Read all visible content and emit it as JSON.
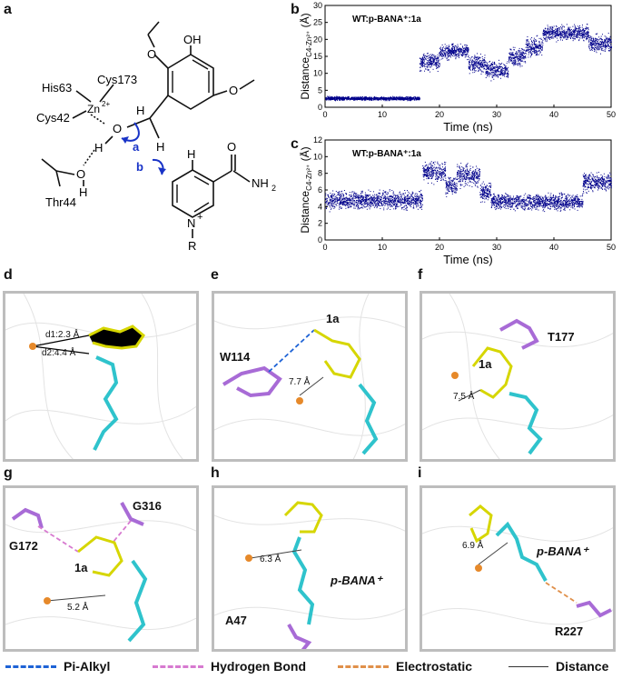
{
  "panel_labels": {
    "a": "a",
    "b": "b",
    "c": "c",
    "d": "d",
    "e": "e",
    "f": "f",
    "g": "g",
    "h": "h",
    "i": "i"
  },
  "scheme": {
    "zn": "Zn",
    "zn_charge": "2+",
    "his": "His63",
    "cys173": "Cys173",
    "cys42": "Cys42",
    "thr": "Thr44",
    "o": "O",
    "oh": "OH",
    "h": "H",
    "n": "N",
    "plus": "+",
    "r": "R",
    "nh2": "NH",
    "nh2_sub": "2",
    "arrow_a": "a",
    "arrow_b": "b"
  },
  "chart_data": [
    {
      "type": "scatter",
      "annotation": "WT:p-BANA⁺:1a",
      "xlabel": "Time (ns)",
      "ylabel": "Distance",
      "ylabel_sub": "C4-Zn²⁺",
      "ylabel_unit": " (Å)",
      "xlim": [
        0,
        50
      ],
      "ylim": [
        0,
        30
      ],
      "xticks": [
        0,
        10,
        20,
        30,
        40,
        50
      ],
      "yticks": [
        0,
        5,
        10,
        15,
        20,
        25,
        30
      ],
      "color": "#00008b",
      "segments": [
        {
          "x": [
            0,
            16.5
          ],
          "mean": 2.7,
          "spread": 0.6
        },
        {
          "x": [
            16.5,
            20
          ],
          "mean": 13.5,
          "spread": 3
        },
        {
          "x": [
            20,
            25
          ],
          "mean": 16.5,
          "spread": 2.5
        },
        {
          "x": [
            25,
            28
          ],
          "mean": 13,
          "spread": 3
        },
        {
          "x": [
            28,
            32
          ],
          "mean": 11,
          "spread": 3
        },
        {
          "x": [
            32,
            35
          ],
          "mean": 15,
          "spread": 3
        },
        {
          "x": [
            35,
            38
          ],
          "mean": 18,
          "spread": 3
        },
        {
          "x": [
            38,
            46
          ],
          "mean": 22,
          "spread": 2.5
        },
        {
          "x": [
            46,
            50
          ],
          "mean": 19,
          "spread": 3
        }
      ]
    },
    {
      "type": "scatter",
      "annotation": "WT:p-BANA⁺:1a",
      "xlabel": "Time (ns)",
      "ylabel": "Distance",
      "ylabel_sub": "C4-Zn²⁺",
      "ylabel_unit": " (Å)",
      "xlim": [
        0,
        50
      ],
      "ylim": [
        0,
        12
      ],
      "xticks": [
        0,
        10,
        20,
        30,
        40,
        50
      ],
      "yticks": [
        0,
        2,
        4,
        6,
        8,
        10,
        12
      ],
      "color": "#00008b",
      "segments": [
        {
          "x": [
            0,
            17
          ],
          "mean": 4.8,
          "spread": 1.2
        },
        {
          "x": [
            17,
            21
          ],
          "mean": 8.2,
          "spread": 1.3
        },
        {
          "x": [
            21,
            23
          ],
          "mean": 6.5,
          "spread": 1.2
        },
        {
          "x": [
            23,
            27
          ],
          "mean": 7.8,
          "spread": 1.4
        },
        {
          "x": [
            27,
            29
          ],
          "mean": 5.8,
          "spread": 1.2
        },
        {
          "x": [
            29,
            45
          ],
          "mean": 4.6,
          "spread": 1.1
        },
        {
          "x": [
            45,
            50
          ],
          "mean": 7.0,
          "spread": 1.2
        }
      ]
    }
  ],
  "panels": {
    "d": {
      "d1": "d1:2.3 Å",
      "d2": "d2:4.4 Å"
    },
    "e": {
      "res": "W114",
      "lig": "1a",
      "dist": "7.7 Å"
    },
    "f": {
      "res": "T177",
      "lig": "1a",
      "dist": "7.5 Å"
    },
    "g": {
      "res1": "G316",
      "res2": "G172",
      "lig": "1a",
      "dist": "5.2 Å"
    },
    "h": {
      "lig": "p-BANA⁺",
      "res": "A47",
      "dist": "6.3 Å"
    },
    "i": {
      "lig": "p-BANA⁺",
      "res": "R227",
      "dist": "6.9 Å"
    }
  },
  "legend": [
    {
      "label": "Pi-Alkyl",
      "color": "#1e63d6",
      "style": "dashed"
    },
    {
      "label": "Hydrogen Bond",
      "color": "#d77ad0",
      "style": "dashed"
    },
    {
      "label": "Electrostatic",
      "color": "#e0904a",
      "style": "dashed"
    },
    {
      "label": "Distance",
      "color": "#333333",
      "style": "solid"
    }
  ]
}
